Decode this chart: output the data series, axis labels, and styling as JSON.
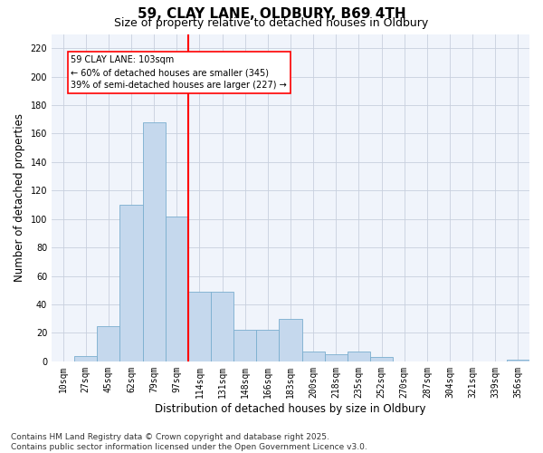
{
  "title1": "59, CLAY LANE, OLDBURY, B69 4TH",
  "title2": "Size of property relative to detached houses in Oldbury",
  "xlabel": "Distribution of detached houses by size in Oldbury",
  "ylabel": "Number of detached properties",
  "categories": [
    "10sqm",
    "27sqm",
    "45sqm",
    "62sqm",
    "79sqm",
    "97sqm",
    "114sqm",
    "131sqm",
    "148sqm",
    "166sqm",
    "183sqm",
    "200sqm",
    "218sqm",
    "235sqm",
    "252sqm",
    "270sqm",
    "287sqm",
    "304sqm",
    "321sqm",
    "339sqm",
    "356sqm"
  ],
  "values": [
    0,
    4,
    25,
    110,
    168,
    102,
    49,
    49,
    22,
    22,
    30,
    7,
    5,
    7,
    3,
    0,
    0,
    0,
    0,
    0,
    1
  ],
  "bar_color": "#c5d8ed",
  "bar_edge_color": "#7aaecf",
  "vline_color": "red",
  "annotation_text": "59 CLAY LANE: 103sqm\n← 60% of detached houses are smaller (345)\n39% of semi-detached houses are larger (227) →",
  "annotation_box_color": "white",
  "annotation_box_edge": "red",
  "ylim": [
    0,
    230
  ],
  "yticks": [
    0,
    20,
    40,
    60,
    80,
    100,
    120,
    140,
    160,
    180,
    200,
    220
  ],
  "footer1": "Contains HM Land Registry data © Crown copyright and database right 2025.",
  "footer2": "Contains public sector information licensed under the Open Government Licence v3.0.",
  "bg_color": "#f0f4fb",
  "grid_color": "#c8d0de",
  "title_fontsize": 11,
  "subtitle_fontsize": 9,
  "axis_label_fontsize": 8.5,
  "tick_fontsize": 7,
  "footer_fontsize": 6.5,
  "annot_fontsize": 7
}
